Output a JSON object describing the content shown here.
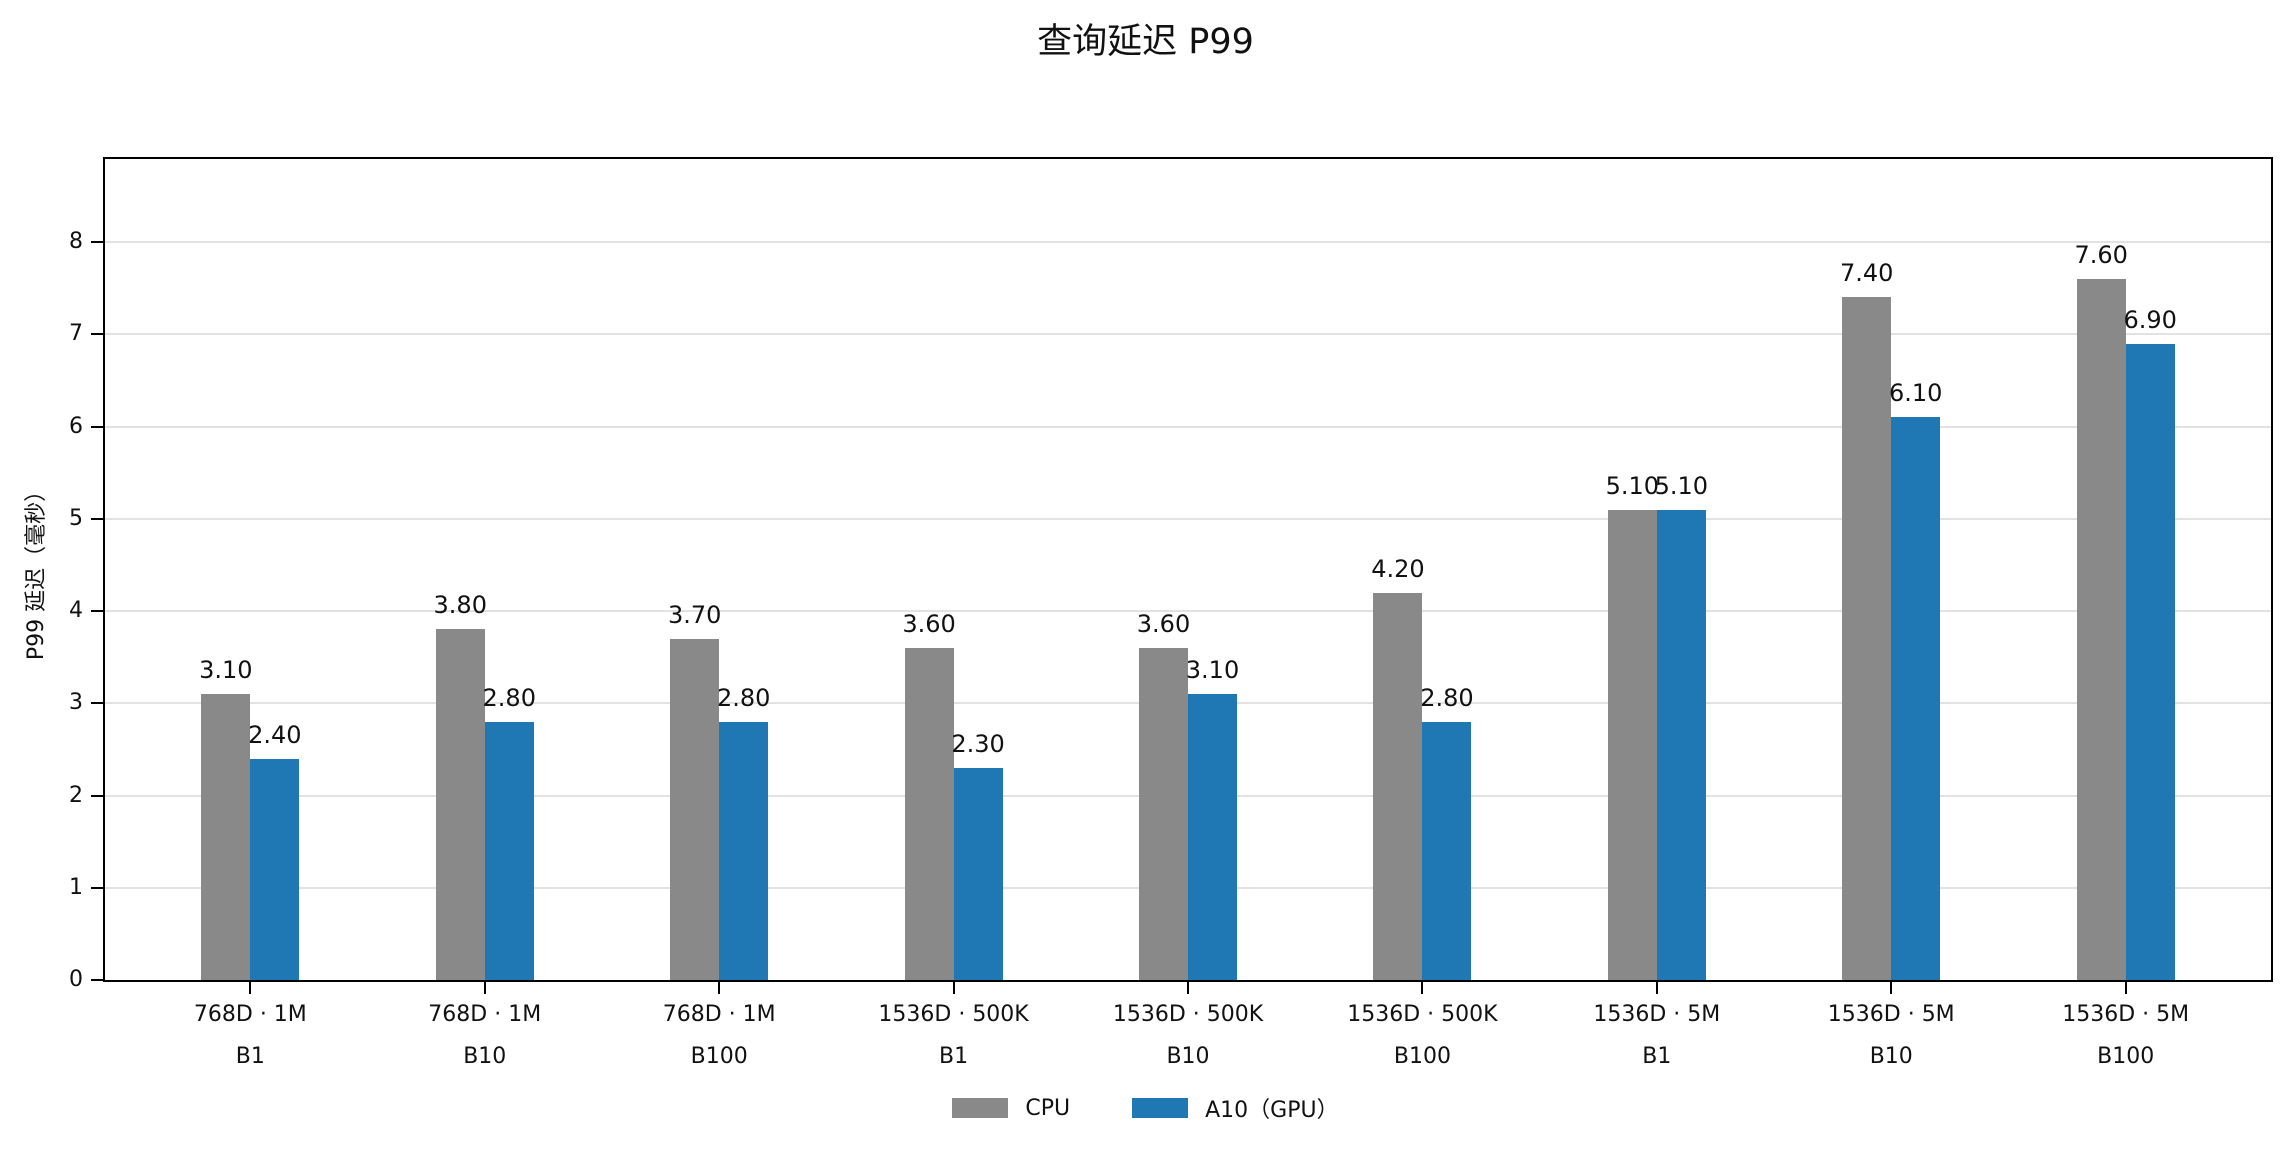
{
  "page": {
    "background": "#ffffff"
  },
  "chart_data": {
    "type": "bar",
    "title": "查询延迟 P99",
    "ylabel": "P99 延迟（毫秒）",
    "categories": [
      "768D · 1M\nB1",
      "768D · 1M\nB10",
      "768D · 1M\nB100",
      "1536D · 500K\nB1",
      "1536D · 500K\nB10",
      "1536D · 500K\nB100",
      "1536D · 5M\nB1",
      "1536D · 5M\nB10",
      "1536D · 5M\nB100"
    ],
    "series": [
      {
        "name": "CPU",
        "color": "#898989",
        "values": [
          3.1,
          3.8,
          3.7,
          3.6,
          3.6,
          4.2,
          5.1,
          7.4,
          7.6
        ]
      },
      {
        "name": "A10（GPU）",
        "color": "#1f77b4",
        "values": [
          2.4,
          2.8,
          2.8,
          2.3,
          3.1,
          2.8,
          5.1,
          6.1,
          6.9
        ]
      }
    ],
    "value_label_decimals": 2,
    "yticks": [
      0,
      1,
      2,
      3,
      4,
      5,
      6,
      7,
      8
    ],
    "ylim": [
      0,
      8.9
    ],
    "xlim": [
      -0.62,
      8.62
    ],
    "grid": "horizontal",
    "gridline_color": "#e2e2e2",
    "legend_position": "bottom",
    "xlabel": ""
  }
}
